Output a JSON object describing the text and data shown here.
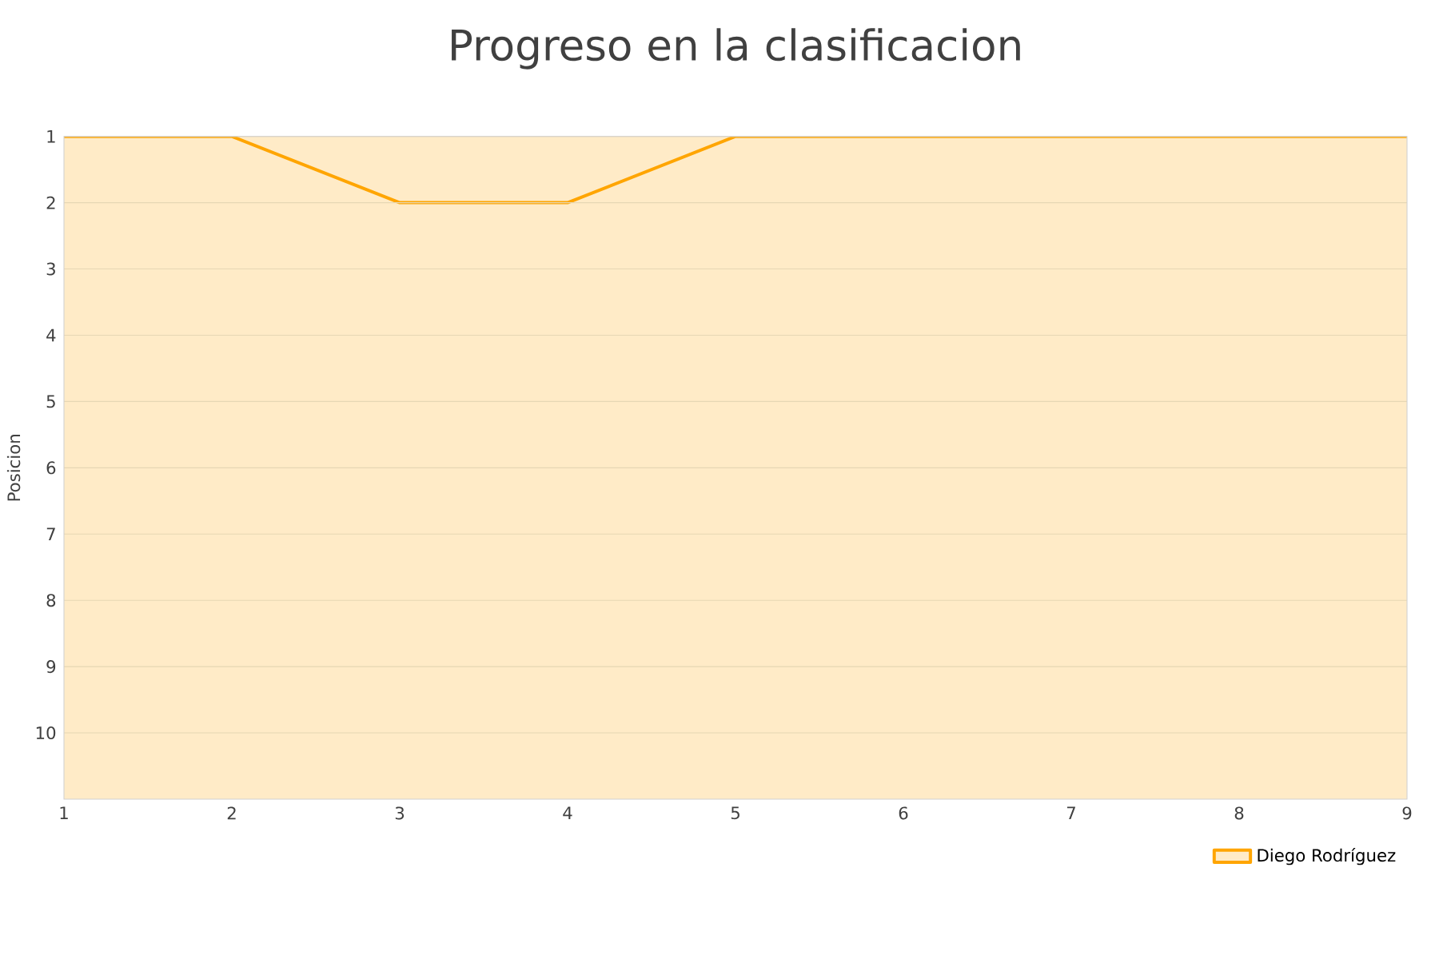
{
  "chart_data": {
    "type": "area",
    "title": "Progreso en la clasificacion",
    "ylabel": "Posicion",
    "x": [
      1,
      2,
      3,
      4,
      5,
      6,
      7,
      8,
      9
    ],
    "series": [
      {
        "name": "Diego Rodríguez",
        "color": "#ffa500",
        "values": [
          1,
          1,
          2,
          2,
          1,
          1,
          1,
          1,
          1
        ]
      }
    ],
    "xlim": [
      1,
      9
    ],
    "xticks": [
      1,
      2,
      3,
      4,
      5,
      6,
      7,
      8,
      9
    ],
    "ylim": [
      11,
      1
    ],
    "yticks": [
      1,
      2,
      3,
      4,
      5,
      6,
      7,
      8,
      9,
      10
    ],
    "grid": "y",
    "legend": "bottom right"
  }
}
